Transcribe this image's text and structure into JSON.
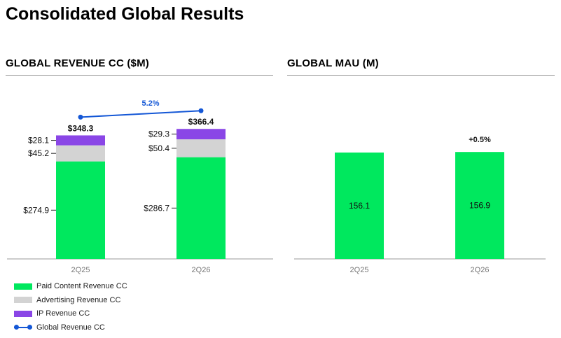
{
  "page": {
    "title": "Consolidated Global Results"
  },
  "chart_data": [
    {
      "type": "bar",
      "stacked": true,
      "title": "GLOBAL REVENUE CC ($M)",
      "categories": [
        "2Q25",
        "2Q26"
      ],
      "ylim": [
        0,
        400
      ],
      "series": [
        {
          "name": "Paid Content Revenue CC",
          "color": "#00e85e",
          "values": [
            274.9,
            286.7
          ],
          "labels": [
            "$274.9",
            "$286.7"
          ]
        },
        {
          "name": "Advertising Revenue CC",
          "color": "#d3d3d3",
          "values": [
            45.2,
            50.4
          ],
          "labels": [
            "$45.2",
            "$50.4"
          ]
        },
        {
          "name": "IP Revenue CC",
          "color": "#8a46e6",
          "values": [
            28.1,
            29.3
          ],
          "labels": [
            "$28.1",
            "$29.3"
          ]
        }
      ],
      "line": {
        "name": "Global Revenue CC",
        "color": "#1457d6",
        "values": [
          348.3,
          366.4
        ],
        "labels": [
          "$348.3",
          "$366.4"
        ],
        "growth_label": "5.2%"
      },
      "legend_position": "bottom-left",
      "grid": false
    },
    {
      "type": "bar",
      "title": "GLOBAL MAU (M)",
      "categories": [
        "2Q25",
        "2Q26"
      ],
      "ylim": [
        0,
        400
      ],
      "series": [
        {
          "color": "#00e85e",
          "values": [
            156.1,
            156.9
          ],
          "labels": [
            "156.1",
            "156.9"
          ]
        }
      ],
      "growth_label": "+0.5%",
      "grid": false
    }
  ]
}
